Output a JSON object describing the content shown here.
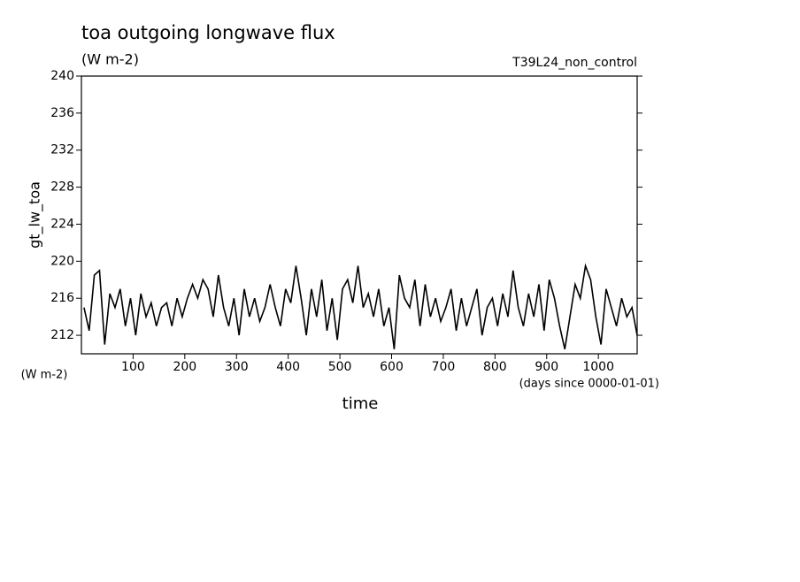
{
  "chart_data": {
    "type": "line",
    "title": "toa outgoing longwave flux",
    "subtitle": "(W m-2)",
    "experiment": "T39L24_non_control",
    "y_label": "gt_lw_toa",
    "y_units": "(W m-2)",
    "x_label": "time",
    "x_units": "(days since 0000-01-01)",
    "color": "#000000",
    "xlim": [
      0,
      1075
    ],
    "ylim": [
      210,
      240
    ],
    "xticks": [
      100,
      200,
      300,
      400,
      500,
      600,
      700,
      800,
      900,
      1000
    ],
    "yticks": [
      212,
      216,
      220,
      224,
      228,
      232,
      236,
      240
    ],
    "x": [
      5,
      15,
      25,
      35,
      45,
      55,
      65,
      75,
      85,
      95,
      105,
      115,
      125,
      135,
      145,
      155,
      165,
      175,
      185,
      195,
      205,
      215,
      225,
      235,
      245,
      255,
      265,
      275,
      285,
      295,
      305,
      315,
      325,
      335,
      345,
      355,
      365,
      375,
      385,
      395,
      405,
      415,
      425,
      435,
      445,
      455,
      465,
      475,
      485,
      495,
      505,
      515,
      525,
      535,
      545,
      555,
      565,
      575,
      585,
      595,
      605,
      615,
      625,
      635,
      645,
      655,
      665,
      675,
      685,
      695,
      705,
      715,
      725,
      735,
      745,
      755,
      765,
      775,
      785,
      795,
      805,
      815,
      825,
      835,
      845,
      855,
      865,
      875,
      885,
      895,
      905,
      915,
      925,
      935,
      945,
      955,
      965,
      975,
      985,
      995,
      1005,
      1015,
      1025,
      1035,
      1045,
      1055,
      1065,
      1075
    ],
    "values": [
      215,
      212.5,
      218.5,
      219,
      211,
      216.5,
      215,
      217,
      213,
      216,
      212,
      216.5,
      214,
      215.5,
      213,
      215,
      215.5,
      213,
      216,
      214,
      216,
      217.5,
      216,
      218,
      217,
      214,
      218.5,
      215,
      213,
      216,
      212,
      217,
      214,
      216,
      213.5,
      215,
      217.5,
      215,
      213,
      217,
      215.5,
      219.5,
      216,
      212,
      217,
      214,
      218,
      212.5,
      216,
      211.5,
      217,
      218,
      215.5,
      219.5,
      215,
      216.5,
      214,
      217,
      213,
      215,
      210.5,
      218.5,
      216,
      215,
      218,
      213,
      217.5,
      214,
      216,
      213.5,
      215,
      217,
      212.5,
      216,
      213,
      215,
      217,
      212,
      215,
      216,
      213,
      216.5,
      214,
      219,
      215,
      213,
      216.5,
      214,
      217.5,
      212.5,
      218,
      216,
      213,
      210.5,
      214,
      217.5,
      216,
      219.5,
      218,
      214,
      211,
      217,
      215,
      213,
      216,
      214,
      215,
      212
    ]
  }
}
